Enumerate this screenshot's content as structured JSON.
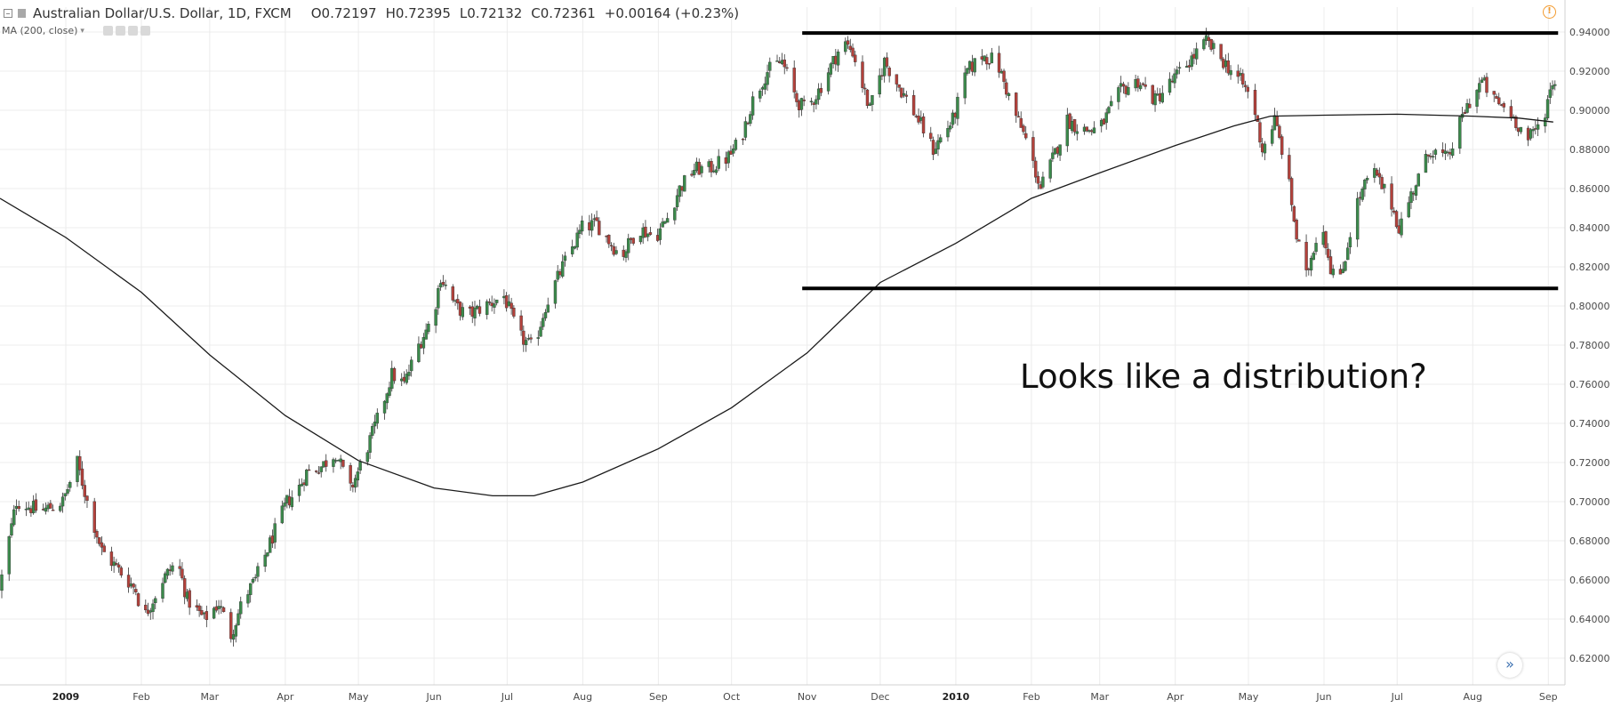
{
  "header": {
    "symbol_title": "Australian Dollar/U.S. Dollar, 1D, FXCM",
    "open": "O0.72197",
    "high": "H0.72395",
    "low": "L0.72132",
    "close": "C0.72361",
    "change": "+0.00164 (+0.23%)"
  },
  "indicator": {
    "label": "MA (200, close)"
  },
  "annotation": "Looks like a distribution?",
  "colors": {
    "up": "#3b8a4b",
    "down": "#b3413b",
    "ma": "#1a1a1a",
    "level": "#000000",
    "grid": "#ececec",
    "alert": "#f39b2f"
  },
  "icons": {
    "collapse": "collapse-icon",
    "flag": "flag-icon",
    "alert": "alert-icon",
    "scroll": "scroll-right-icon"
  },
  "chart_data": {
    "type": "candlestick",
    "instrument": "AUD/USD",
    "ylim": [
      0.615,
      0.945
    ],
    "y_ticks": [
      "0.94000",
      "0.92000",
      "0.90000",
      "0.88000",
      "0.86000",
      "0.84000",
      "0.82000",
      "0.80000",
      "0.78000",
      "0.76000",
      "0.74000",
      "0.72000",
      "0.70000",
      "0.68000",
      "0.66000",
      "0.64000",
      "0.62000"
    ],
    "x_ticks": [
      {
        "label": "2009",
        "date": "2009-01-01",
        "bold": true
      },
      {
        "label": "Feb",
        "date": "2009-02-01"
      },
      {
        "label": "Mar",
        "date": "2009-03-01"
      },
      {
        "label": "Apr",
        "date": "2009-04-01"
      },
      {
        "label": "May",
        "date": "2009-05-01"
      },
      {
        "label": "Jun",
        "date": "2009-06-01"
      },
      {
        "label": "Jul",
        "date": "2009-07-01"
      },
      {
        "label": "Aug",
        "date": "2009-08-01"
      },
      {
        "label": "Sep",
        "date": "2009-09-01"
      },
      {
        "label": "Oct",
        "date": "2009-10-01"
      },
      {
        "label": "Nov",
        "date": "2009-11-01"
      },
      {
        "label": "Dec",
        "date": "2009-12-01"
      },
      {
        "label": "2010",
        "date": "2010-01-01",
        "bold": true
      },
      {
        "label": "Feb",
        "date": "2010-02-01"
      },
      {
        "label": "Mar",
        "date": "2010-03-01"
      },
      {
        "label": "Apr",
        "date": "2010-04-01"
      },
      {
        "label": "May",
        "date": "2010-05-01"
      },
      {
        "label": "Jun",
        "date": "2010-06-01"
      },
      {
        "label": "Jul",
        "date": "2010-07-01"
      },
      {
        "label": "Aug",
        "date": "2010-08-01"
      },
      {
        "label": "Sep",
        "date": "2010-09-01"
      }
    ],
    "price_path": [
      [
        "2008-12-05",
        0.655
      ],
      [
        "2008-12-12",
        0.7
      ],
      [
        "2008-12-22",
        0.695
      ],
      [
        "2008-12-31",
        0.7
      ],
      [
        "2009-01-06",
        0.72
      ],
      [
        "2009-01-10",
        0.7
      ],
      [
        "2009-01-16",
        0.675
      ],
      [
        "2009-01-23",
        0.665
      ],
      [
        "2009-01-30",
        0.655
      ],
      [
        "2009-02-02",
        0.64
      ],
      [
        "2009-02-10",
        0.66
      ],
      [
        "2009-02-16",
        0.67
      ],
      [
        "2009-02-20",
        0.65
      ],
      [
        "2009-02-27",
        0.64
      ],
      [
        "2009-03-05",
        0.648
      ],
      [
        "2009-03-10",
        0.632
      ],
      [
        "2009-03-15",
        0.65
      ],
      [
        "2009-03-20",
        0.66
      ],
      [
        "2009-03-28",
        0.685
      ],
      [
        "2009-04-02",
        0.7
      ],
      [
        "2009-04-06",
        0.705
      ],
      [
        "2009-04-10",
        0.715
      ],
      [
        "2009-04-16",
        0.718
      ],
      [
        "2009-04-22",
        0.725
      ],
      [
        "2009-04-28",
        0.706
      ],
      [
        "2009-05-01",
        0.715
      ],
      [
        "2009-05-05",
        0.728
      ],
      [
        "2009-05-10",
        0.745
      ],
      [
        "2009-05-15",
        0.765
      ],
      [
        "2009-05-20",
        0.76
      ],
      [
        "2009-05-26",
        0.78
      ],
      [
        "2009-06-01",
        0.795
      ],
      [
        "2009-06-04",
        0.815
      ],
      [
        "2009-06-10",
        0.8
      ],
      [
        "2009-06-15",
        0.795
      ],
      [
        "2009-06-22",
        0.8
      ],
      [
        "2009-06-30",
        0.805
      ],
      [
        "2009-07-06",
        0.785
      ],
      [
        "2009-07-12",
        0.778
      ],
      [
        "2009-07-17",
        0.8
      ],
      [
        "2009-07-24",
        0.82
      ],
      [
        "2009-08-01",
        0.84
      ],
      [
        "2009-08-07",
        0.842
      ],
      [
        "2009-08-17",
        0.825
      ],
      [
        "2009-08-24",
        0.84
      ],
      [
        "2009-08-31",
        0.835
      ],
      [
        "2009-09-05",
        0.845
      ],
      [
        "2009-09-10",
        0.86
      ],
      [
        "2009-09-16",
        0.87
      ],
      [
        "2009-09-22",
        0.87
      ],
      [
        "2009-09-30",
        0.876
      ],
      [
        "2009-10-05",
        0.885
      ],
      [
        "2009-10-10",
        0.905
      ],
      [
        "2009-10-16",
        0.92
      ],
      [
        "2009-10-22",
        0.925
      ],
      [
        "2009-10-28",
        0.905
      ],
      [
        "2009-11-01",
        0.9
      ],
      [
        "2009-11-06",
        0.91
      ],
      [
        "2009-11-12",
        0.925
      ],
      [
        "2009-11-16",
        0.935
      ],
      [
        "2009-11-20",
        0.93
      ],
      [
        "2009-11-27",
        0.9
      ],
      [
        "2009-12-03",
        0.925
      ],
      [
        "2009-12-10",
        0.91
      ],
      [
        "2009-12-17",
        0.895
      ],
      [
        "2009-12-23",
        0.88
      ],
      [
        "2009-12-31",
        0.895
      ],
      [
        "2010-01-06",
        0.92
      ],
      [
        "2010-01-12",
        0.928
      ],
      [
        "2010-01-18",
        0.925
      ],
      [
        "2010-01-25",
        0.9
      ],
      [
        "2010-01-30",
        0.885
      ],
      [
        "2010-02-05",
        0.86
      ],
      [
        "2010-02-10",
        0.875
      ],
      [
        "2010-02-16",
        0.895
      ],
      [
        "2010-02-22",
        0.89
      ],
      [
        "2010-03-01",
        0.89
      ],
      [
        "2010-03-10",
        0.91
      ],
      [
        "2010-03-17",
        0.915
      ],
      [
        "2010-03-24",
        0.905
      ],
      [
        "2010-03-31",
        0.915
      ],
      [
        "2010-04-07",
        0.925
      ],
      [
        "2010-04-14",
        0.935
      ],
      [
        "2010-04-21",
        0.925
      ],
      [
        "2010-04-28",
        0.915
      ],
      [
        "2010-05-03",
        0.905
      ],
      [
        "2010-05-07",
        0.88
      ],
      [
        "2010-05-12",
        0.895
      ],
      [
        "2010-05-17",
        0.87
      ],
      [
        "2010-05-21",
        0.835
      ],
      [
        "2010-05-25",
        0.815
      ],
      [
        "2010-05-31",
        0.845
      ],
      [
        "2010-06-04",
        0.82
      ],
      [
        "2010-06-08",
        0.813
      ],
      [
        "2010-06-14",
        0.85
      ],
      [
        "2010-06-21",
        0.87
      ],
      [
        "2010-06-29",
        0.852
      ],
      [
        "2010-07-02",
        0.84
      ],
      [
        "2010-07-08",
        0.86
      ],
      [
        "2010-07-15",
        0.88
      ],
      [
        "2010-07-22",
        0.875
      ],
      [
        "2010-07-29",
        0.9
      ],
      [
        "2010-08-05",
        0.915
      ],
      [
        "2010-08-10",
        0.905
      ],
      [
        "2010-08-16",
        0.9
      ],
      [
        "2010-08-24",
        0.885
      ],
      [
        "2010-08-30",
        0.895
      ],
      [
        "2010-09-03",
        0.915
      ]
    ],
    "moving_average": {
      "name": "MA (200, close)",
      "points": [
        [
          "2008-12-05",
          0.855
        ],
        [
          "2009-01-01",
          0.835
        ],
        [
          "2009-02-01",
          0.807
        ],
        [
          "2009-03-01",
          0.775
        ],
        [
          "2009-04-01",
          0.744
        ],
        [
          "2009-05-01",
          0.721
        ],
        [
          "2009-06-01",
          0.707
        ],
        [
          "2009-06-25",
          0.703
        ],
        [
          "2009-07-12",
          0.703
        ],
        [
          "2009-08-01",
          0.71
        ],
        [
          "2009-09-01",
          0.727
        ],
        [
          "2009-10-01",
          0.748
        ],
        [
          "2009-11-01",
          0.776
        ],
        [
          "2009-12-01",
          0.812
        ],
        [
          "2010-01-01",
          0.832
        ],
        [
          "2010-02-01",
          0.855
        ],
        [
          "2010-03-01",
          0.868
        ],
        [
          "2010-04-01",
          0.882
        ],
        [
          "2010-04-25",
          0.892
        ],
        [
          "2010-05-10",
          0.897
        ],
        [
          "2010-06-01",
          0.8975
        ],
        [
          "2010-07-01",
          0.898
        ],
        [
          "2010-08-01",
          0.897
        ],
        [
          "2010-08-20",
          0.896
        ],
        [
          "2010-09-03",
          0.894
        ]
      ]
    },
    "levels": [
      {
        "name": "resistance",
        "value": 0.9395,
        "from": "2009-10-30",
        "to": "2010-09-05"
      },
      {
        "name": "support",
        "value": 0.809,
        "from": "2009-10-30",
        "to": "2010-09-05"
      }
    ]
  }
}
